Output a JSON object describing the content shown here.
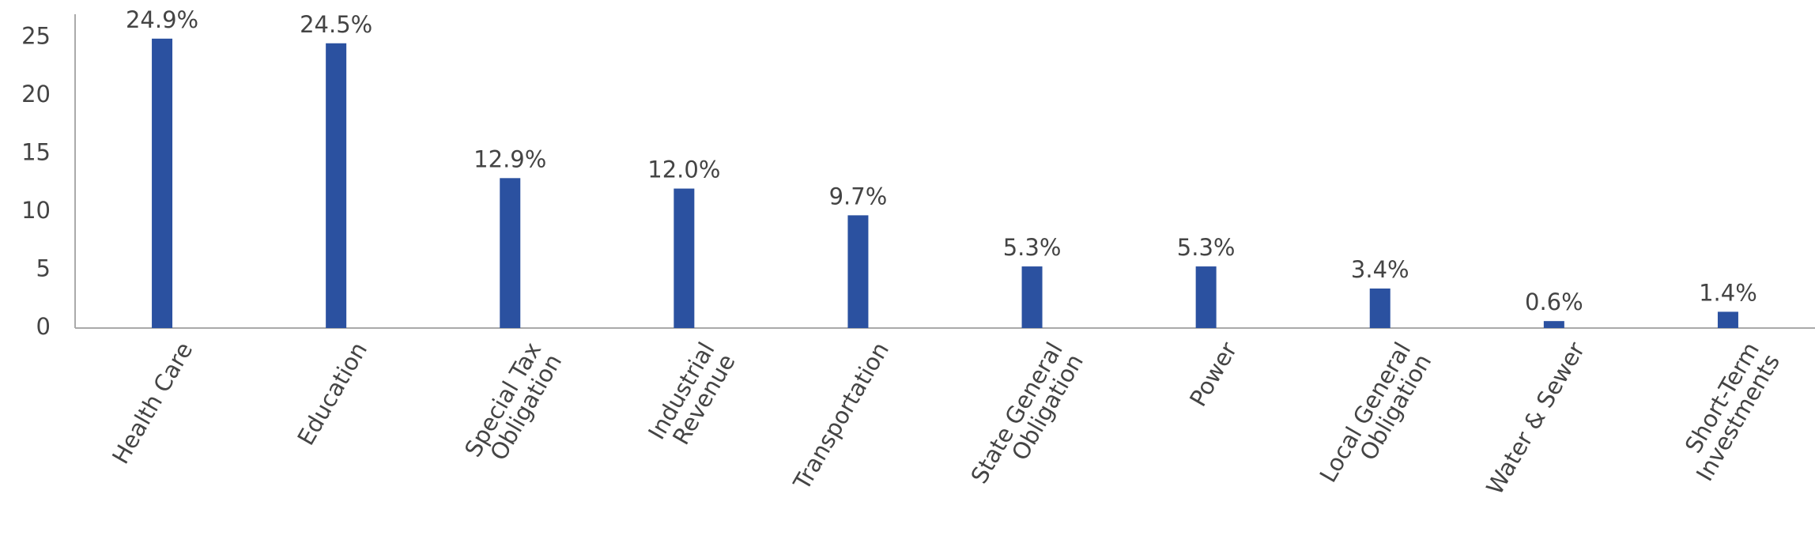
{
  "chart_data": {
    "type": "bar",
    "categories": [
      "Health Care",
      "Education",
      "Special Tax\nObligation",
      "Industrial\nRevenue",
      "Transportation",
      "State General\nObligation",
      "Power",
      "Local General\nObligation",
      "Water & Sewer",
      "Short-Term\nInvestments"
    ],
    "values": [
      24.9,
      24.5,
      12.9,
      12.0,
      9.7,
      5.3,
      5.3,
      3.4,
      0.6,
      1.4
    ],
    "value_labels": [
      "24.9%",
      "24.5%",
      "12.9%",
      "12.0%",
      "9.7%",
      "5.3%",
      "5.3%",
      "3.4%",
      "0.6%",
      "1.4%"
    ],
    "color": "#2b51a0",
    "ylim": [
      0,
      27
    ],
    "yticks": [
      0,
      5,
      10,
      15,
      20,
      25
    ],
    "grid": false
  }
}
